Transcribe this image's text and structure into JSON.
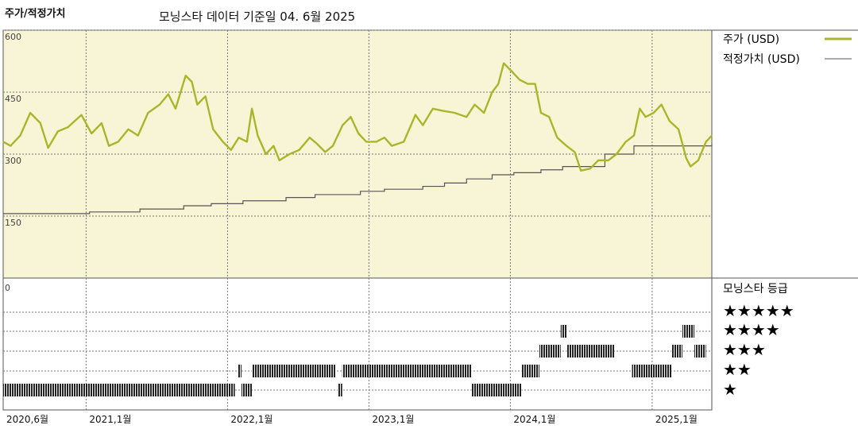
{
  "header": {
    "title": "주가/적정가치",
    "subtitle": "모닝스타 데이터 기준일 04. 6월 2025"
  },
  "legend": {
    "price_label": "주가 (USD)",
    "fair_label": "적정가치 (USD)",
    "rating_title": "모닝스타 등급",
    "stars": [
      "★★★★★",
      "★★★★",
      "★★★",
      "★★",
      "★"
    ]
  },
  "colors": {
    "price": "#aab52b",
    "fair": "#555555",
    "plot_bg": "#f8f5d6",
    "rating_bar": "#222222"
  },
  "chart_data": {
    "type": "line",
    "title": "주가/적정가치",
    "subtitle": "모닝스타 데이터 기준일 04. 6월 2025",
    "ylim": [
      0,
      600
    ],
    "yticks": [
      "600",
      "450",
      "300",
      "150"
    ],
    "rating_yticks": [
      "0"
    ],
    "x_range": [
      "2020-06-01",
      "2025-06-04"
    ],
    "x_tick_labels": [
      "2020,6월",
      "2021,1월",
      "2022,1월",
      "2023,1월",
      "2024,1월",
      "2025,1월"
    ],
    "x_tick_dates": [
      "2020-06-01",
      "2021-01-01",
      "2022-01-01",
      "2023-01-01",
      "2024-01-01",
      "2025-01-01"
    ],
    "series": [
      {
        "name": "주가 (USD)",
        "points": [
          [
            "2020-06-01",
            330
          ],
          [
            "2020-06-20",
            320
          ],
          [
            "2020-07-15",
            345
          ],
          [
            "2020-08-10",
            400
          ],
          [
            "2020-09-05",
            375
          ],
          [
            "2020-09-25",
            315
          ],
          [
            "2020-10-20",
            355
          ],
          [
            "2020-11-15",
            365
          ],
          [
            "2020-12-20",
            395
          ],
          [
            "2021-01-15",
            350
          ],
          [
            "2021-02-10",
            375
          ],
          [
            "2021-03-01",
            320
          ],
          [
            "2021-03-25",
            330
          ],
          [
            "2021-04-20",
            360
          ],
          [
            "2021-05-15",
            345
          ],
          [
            "2021-06-10",
            400
          ],
          [
            "2021-07-10",
            420
          ],
          [
            "2021-08-01",
            445
          ],
          [
            "2021-08-20",
            410
          ],
          [
            "2021-09-15",
            490
          ],
          [
            "2021-10-01",
            475
          ],
          [
            "2021-10-15",
            420
          ],
          [
            "2021-11-05",
            440
          ],
          [
            "2021-11-25",
            360
          ],
          [
            "2021-12-20",
            330
          ],
          [
            "2022-01-10",
            310
          ],
          [
            "2022-01-30",
            340
          ],
          [
            "2022-02-20",
            330
          ],
          [
            "2022-03-05",
            410
          ],
          [
            "2022-03-20",
            345
          ],
          [
            "2022-04-10",
            300
          ],
          [
            "2022-04-30",
            320
          ],
          [
            "2022-05-15",
            285
          ],
          [
            "2022-06-10",
            300
          ],
          [
            "2022-07-05",
            310
          ],
          [
            "2022-08-01",
            340
          ],
          [
            "2022-08-20",
            325
          ],
          [
            "2022-09-10",
            305
          ],
          [
            "2022-09-30",
            320
          ],
          [
            "2022-10-25",
            370
          ],
          [
            "2022-11-15",
            390
          ],
          [
            "2022-12-05",
            350
          ],
          [
            "2022-12-25",
            330
          ],
          [
            "2023-01-20",
            330
          ],
          [
            "2023-02-10",
            340
          ],
          [
            "2023-03-01",
            320
          ],
          [
            "2023-04-01",
            330
          ],
          [
            "2023-05-01",
            395
          ],
          [
            "2023-05-20",
            370
          ],
          [
            "2023-06-15",
            410
          ],
          [
            "2023-07-10",
            405
          ],
          [
            "2023-08-10",
            400
          ],
          [
            "2023-09-10",
            390
          ],
          [
            "2023-10-01",
            420
          ],
          [
            "2023-10-25",
            400
          ],
          [
            "2023-11-15",
            450
          ],
          [
            "2023-12-01",
            470
          ],
          [
            "2023-12-15",
            520
          ],
          [
            "2024-01-05",
            500
          ],
          [
            "2024-01-25",
            480
          ],
          [
            "2024-02-15",
            470
          ],
          [
            "2024-03-05",
            470
          ],
          [
            "2024-03-20",
            400
          ],
          [
            "2024-04-10",
            390
          ],
          [
            "2024-05-01",
            340
          ],
          [
            "2024-05-25",
            320
          ],
          [
            "2024-06-15",
            305
          ],
          [
            "2024-07-01",
            260
          ],
          [
            "2024-07-25",
            265
          ],
          [
            "2024-08-15",
            285
          ],
          [
            "2024-09-10",
            285
          ],
          [
            "2024-10-01",
            300
          ],
          [
            "2024-10-25",
            330
          ],
          [
            "2024-11-15",
            345
          ],
          [
            "2024-11-30",
            410
          ],
          [
            "2024-12-15",
            390
          ],
          [
            "2025-01-05",
            400
          ],
          [
            "2025-01-25",
            420
          ],
          [
            "2025-02-15",
            380
          ],
          [
            "2025-03-10",
            360
          ],
          [
            "2025-03-30",
            290
          ],
          [
            "2025-04-10",
            270
          ],
          [
            "2025-04-30",
            285
          ],
          [
            "2025-05-20",
            330
          ],
          [
            "2025-06-04",
            345
          ]
        ]
      },
      {
        "name": "적정가치 (USD)",
        "steps": [
          [
            "2020-06-01",
            156
          ],
          [
            "2021-01-10",
            160
          ],
          [
            "2021-05-20",
            167
          ],
          [
            "2021-09-10",
            175
          ],
          [
            "2021-11-20",
            180
          ],
          [
            "2022-02-10",
            187
          ],
          [
            "2022-06-01",
            195
          ],
          [
            "2022-08-15",
            202
          ],
          [
            "2022-12-10",
            210
          ],
          [
            "2023-02-10",
            215
          ],
          [
            "2023-05-20",
            222
          ],
          [
            "2023-07-15",
            230
          ],
          [
            "2023-09-10",
            240
          ],
          [
            "2023-11-15",
            250
          ],
          [
            "2024-01-10",
            255
          ],
          [
            "2024-03-20",
            262
          ],
          [
            "2024-05-15",
            270
          ],
          [
            "2024-09-01",
            300
          ],
          [
            "2024-11-15",
            320
          ],
          [
            "2025-06-04",
            325
          ]
        ]
      }
    ],
    "rating_periods": [
      {
        "start": "2020-06-01",
        "end": "2022-01-20",
        "stars": 1
      },
      {
        "start": "2022-01-27",
        "end": "2022-02-06",
        "stars": 2
      },
      {
        "start": "2022-02-06",
        "end": "2022-03-05",
        "stars": 1
      },
      {
        "start": "2022-03-05",
        "end": "2022-10-08",
        "stars": 2
      },
      {
        "start": "2022-10-12",
        "end": "2022-10-24",
        "stars": 1
      },
      {
        "start": "2022-10-24",
        "end": "2023-09-23",
        "stars": 2
      },
      {
        "start": "2023-09-23",
        "end": "2024-01-30",
        "stars": 1
      },
      {
        "start": "2024-01-30",
        "end": "2024-03-16",
        "stars": 2
      },
      {
        "start": "2024-03-16",
        "end": "2024-05-10",
        "stars": 3
      },
      {
        "start": "2024-05-10",
        "end": "2024-05-26",
        "stars": 4
      },
      {
        "start": "2024-05-26",
        "end": "2024-09-25",
        "stars": 3
      },
      {
        "start": "2024-11-10",
        "end": "2025-02-20",
        "stars": 2
      },
      {
        "start": "2025-02-20",
        "end": "2025-03-20",
        "stars": 3
      },
      {
        "start": "2025-03-20",
        "end": "2025-04-20",
        "stars": 4
      },
      {
        "start": "2025-04-20",
        "end": "2025-05-20",
        "stars": 3
      }
    ],
    "grid": true,
    "legend_position": "right"
  }
}
